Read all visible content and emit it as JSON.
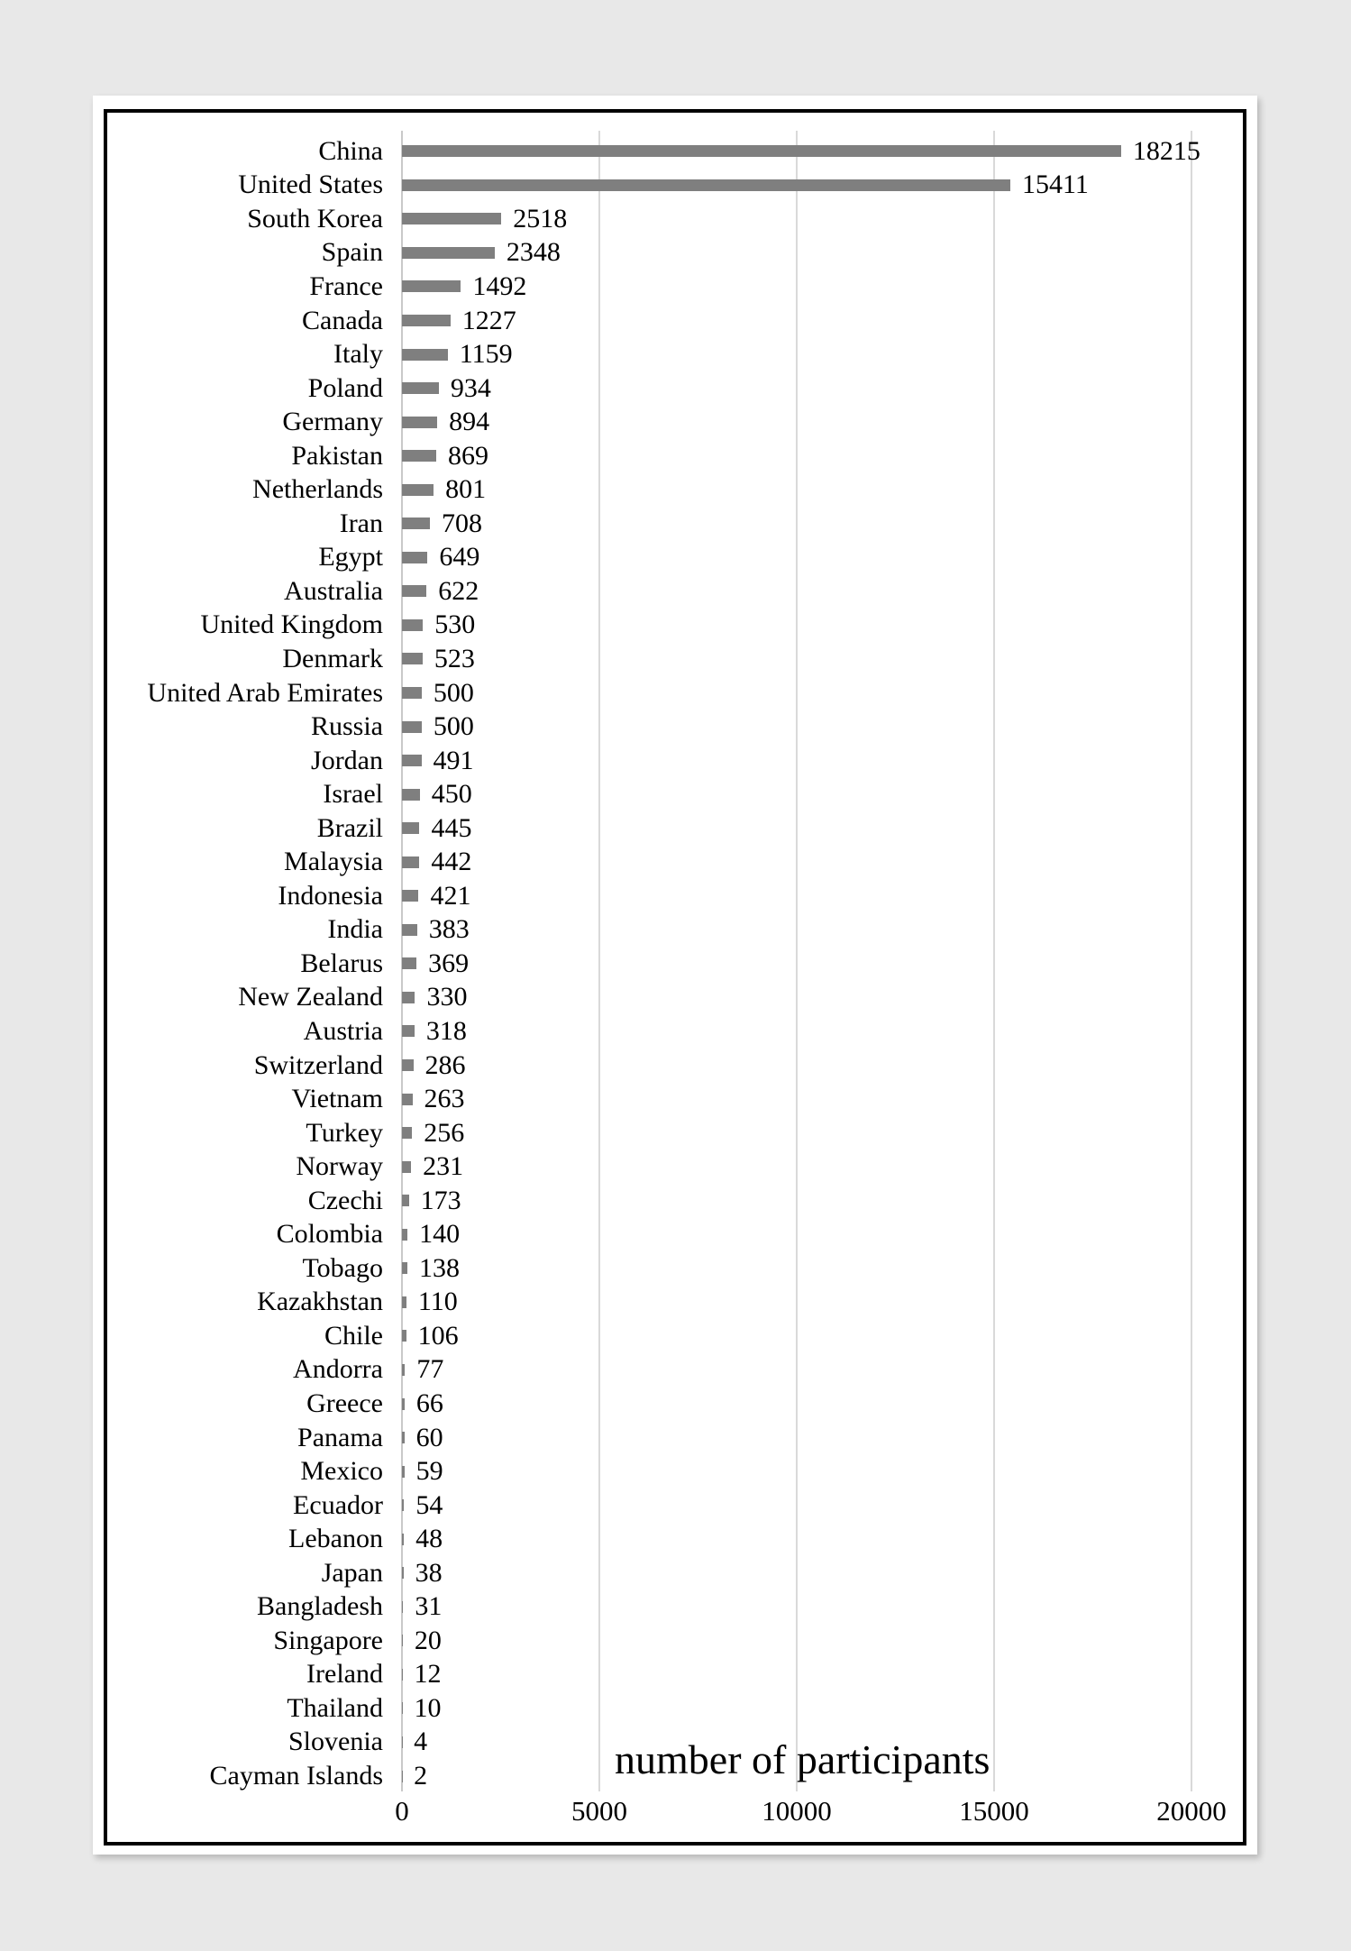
{
  "chart_data": {
    "type": "bar",
    "orientation": "horizontal",
    "title": "",
    "xlabel": "number of participants",
    "ylabel": "",
    "xlim": [
      0,
      20000
    ],
    "xticks": [
      0,
      5000,
      10000,
      15000,
      20000
    ],
    "grid": true,
    "legend": false,
    "value_labels": "end-of-bar",
    "bar_color": "#7f7f7f",
    "gridline_color": "#d9d9d9",
    "categories": [
      "China",
      "United States",
      "South Korea",
      "Spain",
      "France",
      "Canada",
      "Italy",
      "Poland",
      "Germany",
      "Pakistan",
      "Netherlands",
      "Iran",
      "Egypt",
      "Australia",
      "United Kingdom",
      "Denmark",
      "United Arab Emirates",
      "Russia",
      "Jordan",
      "Israel",
      "Brazil",
      "Malaysia",
      "Indonesia",
      "India",
      "Belarus",
      "New Zealand",
      "Austria",
      "Switzerland",
      "Vietnam",
      "Turkey",
      "Norway",
      "Czechi",
      "Colombia",
      "Tobago",
      "Kazakhstan",
      "Chile",
      "Andorra",
      "Greece",
      "Panama",
      "Mexico",
      "Ecuador",
      "Lebanon",
      "Japan",
      "Bangladesh",
      "Singapore",
      "Ireland",
      "Thailand",
      "Slovenia",
      "Cayman Islands"
    ],
    "values": [
      18215,
      15411,
      2518,
      2348,
      1492,
      1227,
      1159,
      934,
      894,
      869,
      801,
      708,
      649,
      622,
      530,
      523,
      500,
      500,
      491,
      450,
      445,
      442,
      421,
      383,
      369,
      330,
      318,
      286,
      263,
      256,
      231,
      173,
      140,
      138,
      110,
      106,
      77,
      66,
      60,
      59,
      54,
      48,
      38,
      31,
      20,
      12,
      10,
      4,
      2
    ]
  },
  "layout_colors": {
    "page_background": "#e8e8e8",
    "paper": "#ffffff",
    "frame_border": "#000000"
  }
}
